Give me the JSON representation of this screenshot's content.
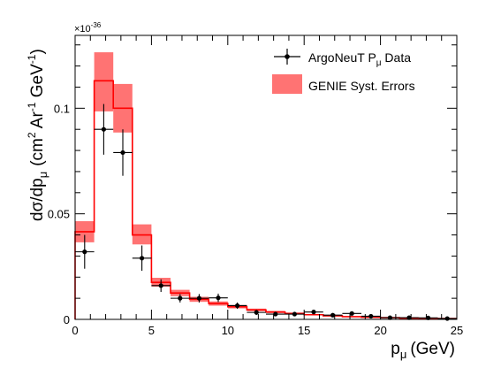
{
  "chart_data": {
    "type": "histogram-with-data-points",
    "xlabel_main": "p",
    "xlabel_sub": "μ",
    "xlabel_unit": "(GeV)",
    "ylabel_main": "dσ/dp",
    "ylabel_sub": "μ",
    "ylabel_unit_open": "(cm",
    "ylabel_unit_sup1": "2",
    "ylabel_unit_mid": " Ar",
    "ylabel_unit_sup2": "-1",
    "ylabel_unit_end": " GeV",
    "ylabel_unit_sup3": "-1",
    "ylabel_unit_close": ")",
    "exponent_prefix": "×10",
    "exponent_power": "-36",
    "xlim": [
      0,
      25
    ],
    "ylim": [
      0,
      0.1345
    ],
    "x_ticks": [
      {
        "value": 0,
        "label": "0"
      },
      {
        "value": 5,
        "label": "5"
      },
      {
        "value": 10,
        "label": "10"
      },
      {
        "value": 15,
        "label": "15"
      },
      {
        "value": 20,
        "label": "20"
      },
      {
        "value": 25,
        "label": "25"
      }
    ],
    "y_ticks": [
      {
        "value": 0,
        "label": "0"
      },
      {
        "value": 0.05,
        "label": "0.05"
      },
      {
        "value": 0.1,
        "label": "0.1"
      }
    ],
    "legend": {
      "placement": "top-right",
      "data_label_main": "ArgoNeuT P",
      "data_label_sub": "μ",
      "data_label_end": " Data",
      "band_label": "GENIE Syst. Errors"
    },
    "colors": {
      "mc_line": "#ff0000",
      "band_fill": "#ff7373",
      "data": "#000000"
    },
    "bin_edges": [
      0,
      1.25,
      2.5,
      3.75,
      5,
      6.25,
      7.5,
      8.75,
      10,
      11.25,
      12.5,
      13.75,
      15,
      16.25,
      17.5,
      18.75,
      20,
      21.25,
      22.5,
      23.75,
      25
    ],
    "series": [
      {
        "name": "GENIE",
        "type": "histogram",
        "values": [
          0.0415,
          0.113,
          0.1,
          0.04,
          0.0175,
          0.0125,
          0.0095,
          0.0075,
          0.006,
          0.0045,
          0.0035,
          0.0028,
          0.0022,
          0.0017,
          0.0013,
          0.001,
          0.0008,
          0.0006,
          0.0005,
          0.0004
        ],
        "band_low": [
          0.0365,
          0.0985,
          0.0885,
          0.0355,
          0.0155,
          0.011,
          0.0083,
          0.0065,
          0.0052,
          0.0039,
          0.003,
          0.0024,
          0.0019,
          0.0014,
          0.0011,
          0.0008,
          0.0006,
          0.0005,
          0.0004,
          0.0003
        ],
        "band_high": [
          0.0465,
          0.1265,
          0.1115,
          0.045,
          0.0197,
          0.014,
          0.0107,
          0.0085,
          0.0068,
          0.0051,
          0.004,
          0.0032,
          0.0025,
          0.002,
          0.0015,
          0.0012,
          0.001,
          0.0007,
          0.0006,
          0.0005
        ]
      },
      {
        "name": "ArgoNeuT Data",
        "type": "points",
        "points": [
          {
            "x": 0.625,
            "y": 0.032,
            "err": 0.008
          },
          {
            "x": 1.875,
            "y": 0.09,
            "err": 0.012
          },
          {
            "x": 3.125,
            "y": 0.079,
            "err": 0.011
          },
          {
            "x": 4.375,
            "y": 0.029,
            "err": 0.006
          },
          {
            "x": 5.625,
            "y": 0.016,
            "err": 0.003
          },
          {
            "x": 6.875,
            "y": 0.01,
            "err": 0.002
          },
          {
            "x": 8.125,
            "y": 0.01,
            "err": 0.002
          },
          {
            "x": 9.375,
            "y": 0.0102,
            "err": 0.002
          },
          {
            "x": 10.625,
            "y": 0.0065,
            "err": 0.0015
          },
          {
            "x": 11.875,
            "y": 0.0033,
            "err": 0.0012
          },
          {
            "x": 13.125,
            "y": 0.0025,
            "err": 0.001
          },
          {
            "x": 14.375,
            "y": 0.0025,
            "err": 0.001
          },
          {
            "x": 15.625,
            "y": 0.0035,
            "err": 0.001
          },
          {
            "x": 16.875,
            "y": 0.002,
            "err": 0.0008
          },
          {
            "x": 18.125,
            "y": 0.0028,
            "err": 0.0008
          },
          {
            "x": 19.375,
            "y": 0.0015,
            "err": 0.0006
          },
          {
            "x": 20.625,
            "y": 0.0008,
            "err": 0.0005
          },
          {
            "x": 21.875,
            "y": 0.0008,
            "err": 0.0004
          },
          {
            "x": 23.125,
            "y": 0.0007,
            "err": 0.0004
          },
          {
            "x": 24.375,
            "y": 0.0004,
            "err": 0.0003
          }
        ]
      }
    ]
  }
}
